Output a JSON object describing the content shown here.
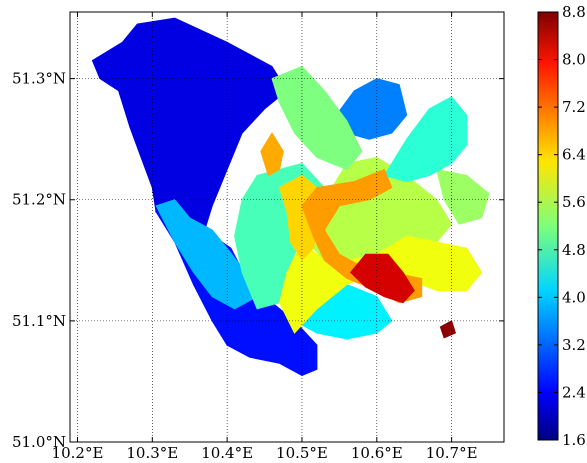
{
  "chart_data": {
    "type": "heatmap",
    "title": "",
    "xlabel": "",
    "ylabel": "",
    "xlim": [
      10.19,
      10.77
    ],
    "ylim": [
      51.0,
      51.355
    ],
    "x_ticks": [
      {
        "value": 10.2,
        "label": "10.2°E"
      },
      {
        "value": 10.3,
        "label": "10.3°E"
      },
      {
        "value": 10.4,
        "label": "10.4°E"
      },
      {
        "value": 10.5,
        "label": "10.5°E"
      },
      {
        "value": 10.6,
        "label": "10.6°E"
      },
      {
        "value": 10.7,
        "label": "10.7°E"
      }
    ],
    "y_ticks": [
      {
        "value": 51.0,
        "label": "51.0°N"
      },
      {
        "value": 51.1,
        "label": "51.1°N"
      },
      {
        "value": 51.2,
        "label": "51.2°N"
      },
      {
        "value": 51.3,
        "label": "51.3°N"
      }
    ],
    "grid": true,
    "grid_style": "dotted",
    "colorbar": {
      "range": [
        1.6,
        8.8
      ],
      "colormap": "jet",
      "ticks": [
        {
          "value": 1.6,
          "label": "1.6"
        },
        {
          "value": 2.4,
          "label": "2.4"
        },
        {
          "value": 3.2,
          "label": "3.2"
        },
        {
          "value": 4.0,
          "label": "4.0"
        },
        {
          "value": 4.8,
          "label": "4.8"
        },
        {
          "value": 5.6,
          "label": "5.6"
        },
        {
          "value": 6.4,
          "label": "6.4"
        },
        {
          "value": 7.2,
          "label": "7.2"
        },
        {
          "value": 8.0,
          "label": "8.0"
        },
        {
          "value": 8.8,
          "label": "8.8"
        }
      ]
    },
    "regions": [
      {
        "value": 2.3,
        "polygon": [
          [
            10.22,
            51.315
          ],
          [
            10.26,
            51.33
          ],
          [
            10.28,
            51.345
          ],
          [
            10.33,
            51.35
          ],
          [
            10.4,
            51.33
          ],
          [
            10.46,
            51.31
          ],
          [
            10.48,
            51.29
          ],
          [
            10.45,
            51.275
          ],
          [
            10.42,
            51.255
          ],
          [
            10.4,
            51.225
          ],
          [
            10.38,
            51.195
          ],
          [
            10.37,
            51.175
          ],
          [
            10.355,
            51.165
          ],
          [
            10.33,
            51.175
          ],
          [
            10.305,
            51.19
          ],
          [
            10.3,
            51.21
          ],
          [
            10.285,
            51.235
          ],
          [
            10.27,
            51.26
          ],
          [
            10.255,
            51.29
          ],
          [
            10.23,
            51.3
          ]
        ]
      },
      {
        "value": 2.6,
        "polygon": [
          [
            10.305,
            51.19
          ],
          [
            10.33,
            51.165
          ],
          [
            10.355,
            51.13
          ],
          [
            10.38,
            51.1
          ],
          [
            10.4,
            51.08
          ],
          [
            10.43,
            51.07
          ],
          [
            10.47,
            51.065
          ],
          [
            10.5,
            51.055
          ],
          [
            10.52,
            51.06
          ],
          [
            10.52,
            51.08
          ],
          [
            10.49,
            51.1
          ],
          [
            10.46,
            51.115
          ],
          [
            10.43,
            51.13
          ],
          [
            10.405,
            51.16
          ],
          [
            10.37,
            51.175
          ],
          [
            10.335,
            51.18
          ]
        ]
      },
      {
        "value": 3.8,
        "polygon": [
          [
            10.305,
            51.195
          ],
          [
            10.33,
            51.2
          ],
          [
            10.35,
            51.185
          ],
          [
            10.38,
            51.175
          ],
          [
            10.4,
            51.16
          ],
          [
            10.425,
            51.14
          ],
          [
            10.44,
            51.12
          ],
          [
            10.41,
            51.11
          ],
          [
            10.38,
            51.12
          ],
          [
            10.355,
            51.14
          ],
          [
            10.33,
            51.165
          ]
        ]
      },
      {
        "value": 4.8,
        "polygon": [
          [
            10.44,
            51.22
          ],
          [
            10.5,
            51.23
          ],
          [
            10.53,
            51.21
          ],
          [
            10.5,
            51.17
          ],
          [
            10.48,
            51.14
          ],
          [
            10.47,
            51.115
          ],
          [
            10.44,
            51.11
          ],
          [
            10.42,
            51.14
          ],
          [
            10.41,
            51.17
          ],
          [
            10.42,
            51.2
          ]
        ]
      },
      {
        "value": 4.2,
        "polygon": [
          [
            10.52,
            51.09
          ],
          [
            10.56,
            51.085
          ],
          [
            10.6,
            51.09
          ],
          [
            10.62,
            51.1
          ],
          [
            10.6,
            51.12
          ],
          [
            10.56,
            51.13
          ],
          [
            10.52,
            51.115
          ],
          [
            10.49,
            51.1
          ]
        ]
      },
      {
        "value": 5.6,
        "polygon": [
          [
            10.5,
            51.17
          ],
          [
            10.53,
            51.2
          ],
          [
            10.56,
            51.23
          ],
          [
            10.6,
            51.235
          ],
          [
            10.64,
            51.22
          ],
          [
            10.68,
            51.2
          ],
          [
            10.7,
            51.18
          ],
          [
            10.68,
            51.165
          ],
          [
            10.64,
            51.17
          ],
          [
            10.6,
            51.155
          ],
          [
            10.56,
            51.15
          ],
          [
            10.53,
            51.15
          ]
        ]
      },
      {
        "value": 5.4,
        "polygon": [
          [
            10.68,
            51.225
          ],
          [
            10.72,
            51.22
          ],
          [
            10.75,
            51.205
          ],
          [
            10.74,
            51.185
          ],
          [
            10.71,
            51.18
          ],
          [
            10.69,
            51.2
          ]
        ]
      },
      {
        "value": 4.6,
        "polygon": [
          [
            10.61,
            51.22
          ],
          [
            10.64,
            51.25
          ],
          [
            10.67,
            51.275
          ],
          [
            10.7,
            51.285
          ],
          [
            10.72,
            51.27
          ],
          [
            10.72,
            51.245
          ],
          [
            10.7,
            51.23
          ],
          [
            10.67,
            51.22
          ],
          [
            10.64,
            51.215
          ]
        ]
      },
      {
        "value": 3.4,
        "polygon": [
          [
            10.54,
            51.265
          ],
          [
            10.57,
            51.29
          ],
          [
            10.6,
            51.3
          ],
          [
            10.63,
            51.295
          ],
          [
            10.64,
            51.27
          ],
          [
            10.62,
            51.255
          ],
          [
            10.59,
            51.25
          ],
          [
            10.56,
            51.255
          ]
        ]
      },
      {
        "value": 5.2,
        "polygon": [
          [
            10.46,
            51.3
          ],
          [
            10.5,
            51.31
          ],
          [
            10.53,
            51.29
          ],
          [
            10.56,
            51.265
          ],
          [
            10.58,
            51.24
          ],
          [
            10.56,
            51.225
          ],
          [
            10.52,
            51.235
          ],
          [
            10.49,
            51.255
          ],
          [
            10.47,
            51.28
          ]
        ]
      },
      {
        "value": 6.0,
        "polygon": [
          [
            10.49,
            51.09
          ],
          [
            10.52,
            51.11
          ],
          [
            10.56,
            51.13
          ],
          [
            10.6,
            51.14
          ],
          [
            10.64,
            51.135
          ],
          [
            10.68,
            51.125
          ],
          [
            10.72,
            51.125
          ],
          [
            10.74,
            51.14
          ],
          [
            10.72,
            51.16
          ],
          [
            10.68,
            51.165
          ],
          [
            10.64,
            51.17
          ],
          [
            10.6,
            51.155
          ],
          [
            10.56,
            51.15
          ],
          [
            10.53,
            51.15
          ],
          [
            10.5,
            51.165
          ],
          [
            10.48,
            51.14
          ],
          [
            10.47,
            51.115
          ]
        ]
      },
      {
        "value": 6.4,
        "polygon": [
          [
            10.47,
            51.21
          ],
          [
            10.5,
            51.22
          ],
          [
            10.52,
            51.21
          ],
          [
            10.525,
            51.185
          ],
          [
            10.515,
            51.16
          ],
          [
            10.5,
            51.15
          ],
          [
            10.485,
            51.165
          ],
          [
            10.48,
            51.19
          ]
        ]
      },
      {
        "value": 6.8,
        "polygon": [
          [
            10.5,
            51.195
          ],
          [
            10.52,
            51.21
          ],
          [
            10.57,
            51.215
          ],
          [
            10.61,
            51.225
          ],
          [
            10.62,
            51.21
          ],
          [
            10.59,
            51.2
          ],
          [
            10.55,
            51.195
          ],
          [
            10.53,
            51.175
          ],
          [
            10.55,
            51.155
          ],
          [
            10.58,
            51.145
          ],
          [
            10.62,
            51.14
          ],
          [
            10.66,
            51.135
          ],
          [
            10.66,
            51.12
          ],
          [
            10.63,
            51.115
          ],
          [
            10.6,
            51.125
          ],
          [
            10.56,
            51.135
          ],
          [
            10.53,
            51.15
          ],
          [
            10.515,
            51.17
          ]
        ]
      },
      {
        "value": 6.7,
        "polygon": [
          [
            10.445,
            51.24
          ],
          [
            10.46,
            51.255
          ],
          [
            10.475,
            51.24
          ],
          [
            10.47,
            51.225
          ],
          [
            10.455,
            51.22
          ]
        ]
      },
      {
        "value": 8.2,
        "polygon": [
          [
            10.565,
            51.14
          ],
          [
            10.585,
            51.155
          ],
          [
            10.615,
            51.155
          ],
          [
            10.635,
            51.14
          ],
          [
            10.65,
            51.125
          ],
          [
            10.635,
            51.115
          ],
          [
            10.61,
            51.12
          ],
          [
            10.585,
            51.128
          ]
        ]
      },
      {
        "value": 8.7,
        "polygon": [
          [
            10.685,
            51.095
          ],
          [
            10.7,
            51.1
          ],
          [
            10.705,
            51.09
          ],
          [
            10.69,
            51.086
          ]
        ]
      }
    ]
  }
}
